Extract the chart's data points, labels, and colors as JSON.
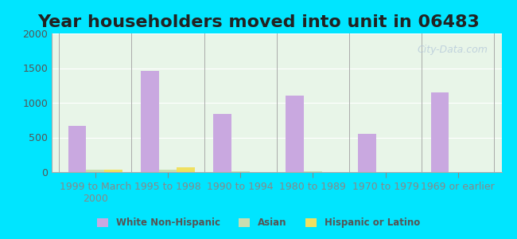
{
  "title": "Year householders moved into unit in 06483",
  "categories": [
    "1999 to March\n2000",
    "1995 to 1998",
    "1990 to 1994",
    "1980 to 1989",
    "1970 to 1979",
    "1969 or earlier"
  ],
  "white_non_hispanic": [
    670,
    1460,
    840,
    1100,
    555,
    1150
  ],
  "asian": [
    30,
    30,
    10,
    10,
    5,
    0
  ],
  "hispanic_or_latino": [
    35,
    65,
    0,
    0,
    0,
    0
  ],
  "white_color": "#c9a8e0",
  "asian_color": "#c8ddb0",
  "hispanic_color": "#f0e060",
  "ylim": [
    0,
    2000
  ],
  "yticks": [
    0,
    500,
    1000,
    1500,
    2000
  ],
  "background_top": "#e8f5e8",
  "background_bottom": "#f0faf0",
  "outer_bg": "#00e5ff",
  "watermark": "City-Data.com",
  "bar_width": 0.25,
  "title_fontsize": 16,
  "tick_fontsize": 9
}
